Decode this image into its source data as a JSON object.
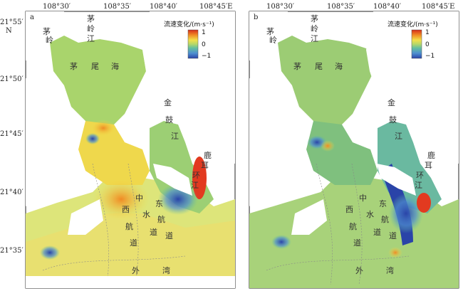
{
  "axis": {
    "lon_ticks": [
      "108°30′",
      "108°35′",
      "108°40′",
      "108°45′E"
    ],
    "lat_ticks": [
      "21°55′",
      "21°50′",
      "21°45′",
      "21°40′",
      "21°35′"
    ],
    "lat_unit": "N"
  },
  "legend": {
    "title": "流速变化/(m·s⁻¹)",
    "max": "1",
    "mid": "0",
    "min": "−1",
    "colors": [
      "#d42a1a",
      "#f08a24",
      "#f2e04a",
      "#b6d868",
      "#63bfa0",
      "#4f8fd0",
      "#2a44a8"
    ]
  },
  "place_names": {
    "maoling": [
      "茅",
      "岭"
    ],
    "maoling_jiang": [
      "茅",
      "岭",
      "江"
    ],
    "maowei_hai": [
      "茅",
      "尾",
      "海"
    ],
    "jinguji": [
      "金",
      "鼓",
      "江"
    ],
    "longmen": [
      "鹿",
      "耳",
      "环",
      "江"
    ],
    "xi_channel": [
      "西",
      "航",
      "道"
    ],
    "dong_channel": [
      "东",
      "航",
      "道"
    ],
    "zhong_channel": [
      "中",
      "水",
      "道"
    ],
    "waiwan": [
      "外",
      "湾"
    ]
  },
  "panels": [
    {
      "id": "a",
      "label": "a"
    },
    {
      "id": "b",
      "label": "b"
    }
  ]
}
